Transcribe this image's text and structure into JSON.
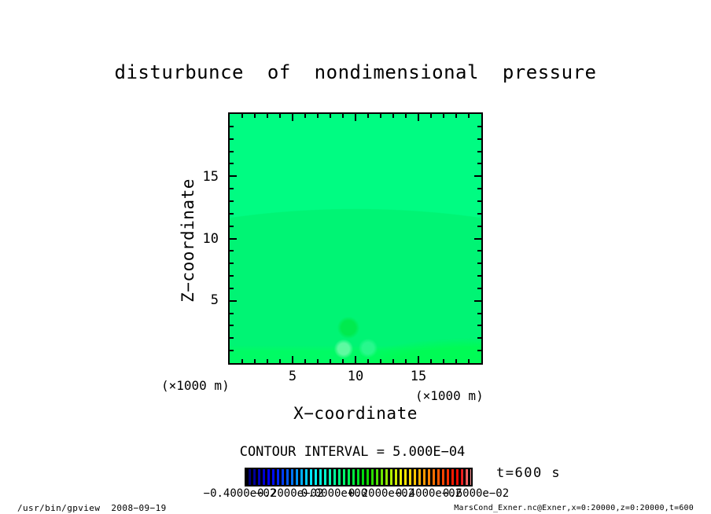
{
  "title": "disturbunce  of  nondimensional  pressure",
  "plot": {
    "x_axis": {
      "label": "X−coordinate",
      "units": "(×1000 m)",
      "ticks": [
        "5",
        "10",
        "15"
      ]
    },
    "y_axis": {
      "label": "Z−coordinate",
      "units": "(×1000 m)",
      "ticks": [
        "15",
        "10",
        "5"
      ]
    }
  },
  "contour_note": "CONTOUR INTERVAL = 5.000E−04",
  "time_label": "t=600 s",
  "colorbar": {
    "labels": [
      "−0.4000e−02",
      "−0.2000e−02",
      "0.0000e+00",
      "0.2000e−02",
      "0.4000e−02",
      "0.6000e−02"
    ]
  },
  "footer": {
    "left": "/usr/bin/gpview  2008−09−19",
    "right": "MarsCond_Exner.nc@Exner,x=0:20000,z=0:20000,t=600"
  },
  "chart_data": {
    "type": "heatmap",
    "title": "disturbunce of nondimensional pressure",
    "xlabel": "X-coordinate",
    "ylabel": "Z-coordinate",
    "x_units": "×1000 m",
    "y_units": "×1000 m",
    "xlim": [
      0,
      20
    ],
    "ylim": [
      0,
      20
    ],
    "x_ticks": [
      5,
      10,
      15
    ],
    "y_ticks": [
      5,
      10,
      15
    ],
    "contour_interval": 0.0005,
    "colorbar_ticks": [
      -0.004,
      -0.002,
      0.0,
      0.002,
      0.004,
      0.006
    ],
    "colorbar_style": "rainbow tone bar, navy to blue to cyan to green to yellow to orange to red to salmon, striped cells on black",
    "time_seconds": 600,
    "field_features": [
      {
        "region": "upper band z>~12 (dome-shaped boundary peaking near z=12.5 at center)",
        "tone_hex": "#00fc82",
        "value_est": "≈0"
      },
      {
        "region": "mid region z<~12",
        "tone_hex": "#00f474",
        "value_est": "≈0"
      },
      {
        "region": "thin wavy strip along bottom z<~1.3",
        "tone_hex": "#00fb64",
        "value_est": "slightly positive"
      },
      {
        "region": "small blob near x≈9.4, z≈2.8",
        "tone_hex": "#00ea4e",
        "value_est": "local anomaly"
      },
      {
        "region": "pale blob near x≈9.1, z≈1.1",
        "tone_hex": "#6efaaa",
        "value_est": "local anomaly"
      },
      {
        "region": "pale blob near x≈11.0, z≈1.2",
        "tone_hex": "#32f894",
        "value_est": "local anomaly"
      },
      {
        "region": "lower-right corner brightening",
        "tone_hex": "#00fb55",
        "value_est": "slightly positive"
      }
    ]
  }
}
